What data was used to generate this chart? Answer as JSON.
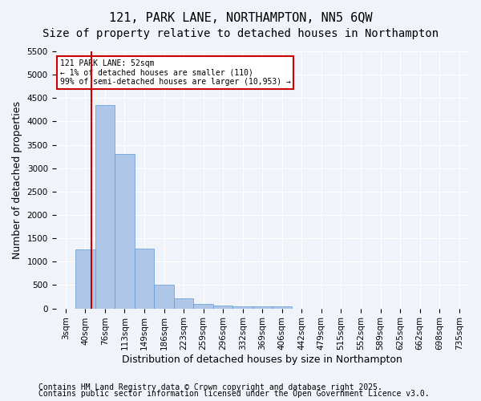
{
  "title_line1": "121, PARK LANE, NORTHAMPTON, NN5 6QW",
  "title_line2": "Size of property relative to detached houses in Northampton",
  "xlabel": "Distribution of detached houses by size in Northampton",
  "ylabel": "Number of detached properties",
  "bins": [
    "3sqm",
    "40sqm",
    "76sqm",
    "113sqm",
    "149sqm",
    "186sqm",
    "223sqm",
    "259sqm",
    "296sqm",
    "332sqm",
    "369sqm",
    "406sqm",
    "442sqm",
    "479sqm",
    "515sqm",
    "552sqm",
    "589sqm",
    "625sqm",
    "662sqm",
    "698sqm",
    "735sqm"
  ],
  "bar_values": [
    0,
    1270,
    4350,
    3300,
    1280,
    500,
    220,
    100,
    60,
    50,
    40,
    40,
    0,
    0,
    0,
    0,
    0,
    0,
    0,
    0,
    0
  ],
  "bar_color": "#aec6e8",
  "bar_edge_color": "#5b9bd5",
  "bar_width": 1.0,
  "vline_x": 1.3,
  "vline_color": "#cc0000",
  "ylim": [
    0,
    5500
  ],
  "yticks": [
    0,
    500,
    1000,
    1500,
    2000,
    2500,
    3000,
    3500,
    4000,
    4500,
    5000,
    5500
  ],
  "annotation_title": "121 PARK LANE: 52sqm",
  "annotation_line1": "← 1% of detached houses are smaller (110)",
  "annotation_line2": "99% of semi-detached houses are larger (10,953) →",
  "annotation_color": "#cc0000",
  "footer_line1": "Contains HM Land Registry data © Crown copyright and database right 2025.",
  "footer_line2": "Contains public sector information licensed under the Open Government Licence v3.0.",
  "bg_color": "#f0f4fa",
  "grid_color": "#ffffff",
  "title_fontsize": 11,
  "subtitle_fontsize": 10,
  "axis_label_fontsize": 9,
  "tick_fontsize": 7.5,
  "footer_fontsize": 7
}
